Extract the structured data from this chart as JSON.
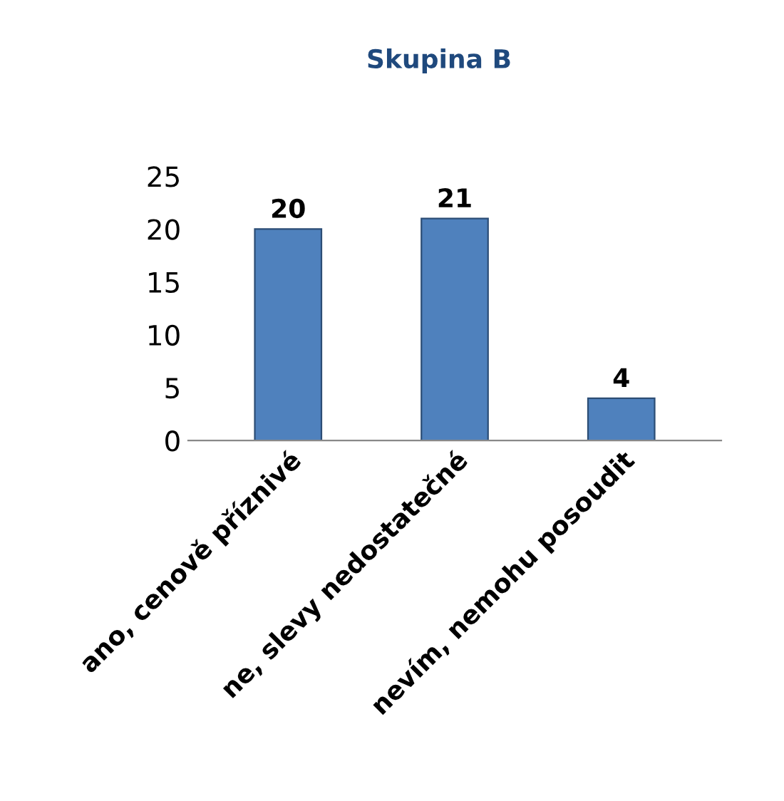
{
  "chart_data": {
    "type": "bar",
    "title": "Skupina B",
    "categories": [
      "ano, cenově příznivé",
      "ne, slevy nedostatečné",
      "nevím, nemohu posoudit"
    ],
    "values": [
      20,
      21,
      4
    ],
    "color": "#4f81bd",
    "ylim": [
      0,
      25
    ],
    "yticks": [
      0,
      5,
      10,
      15,
      20,
      25
    ],
    "data_labels": true,
    "grid": false,
    "legend": false
  }
}
